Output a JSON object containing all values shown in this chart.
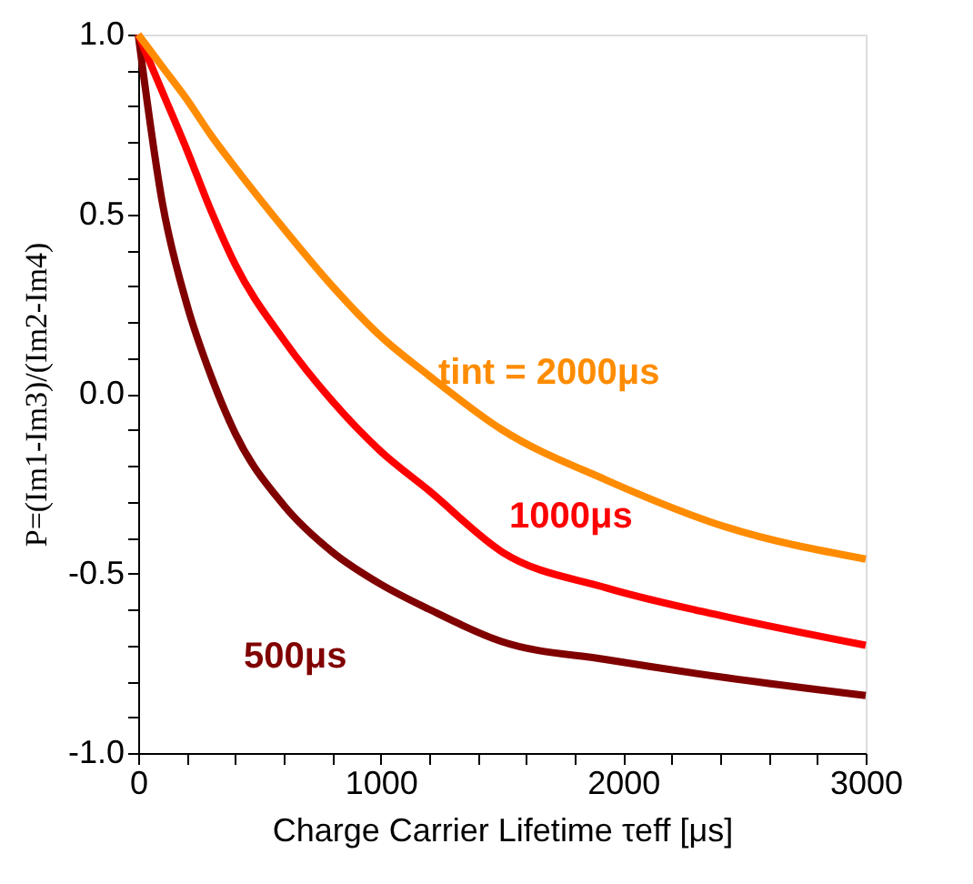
{
  "chart_data": {
    "type": "line",
    "xlabel": "Charge Carrier Lifetime τeff [μs]",
    "ylabel": "P=(Im1-Im3)/(Im2-Im4)",
    "x": [
      0,
      100,
      200,
      300,
      400,
      600,
      800,
      1000,
      1200,
      1500,
      1930,
      2420,
      3000
    ],
    "series": [
      {
        "color": "#800000",
        "values": [
          1.0,
          0.53,
          0.25,
          0.05,
          -0.11,
          -0.31,
          -0.44,
          -0.53,
          -0.6,
          -0.69,
          -0.74,
          -0.79,
          -0.84
        ]
      },
      {
        "color": "#ff0000",
        "values": [
          1.0,
          0.84,
          0.68,
          0.51,
          0.36,
          0.15,
          -0.02,
          -0.16,
          -0.27,
          -0.44,
          -0.54,
          -0.62,
          -0.7
        ]
      },
      {
        "color": "#ff8c00",
        "values": [
          1.0,
          0.91,
          0.82,
          0.72,
          0.63,
          0.46,
          0.3,
          0.16,
          0.05,
          -0.1,
          -0.24,
          -0.37,
          -0.46
        ]
      }
    ],
    "annotations": [
      "500μs",
      "1000μs",
      "tint = 2000μs"
    ],
    "xlim": [
      0,
      3000
    ],
    "xticks": [
      0,
      {
        "value": 200,
        "label": null
      },
      {
        "value": 400,
        "label": null
      },
      {
        "value": 600,
        "label": null
      },
      {
        "value": 800,
        "label": null
      },
      1000,
      {
        "value": 1200,
        "label": null
      },
      {
        "value": 1400,
        "label": null
      },
      {
        "value": 1600,
        "label": null
      },
      {
        "value": 1800,
        "label": null
      },
      2000,
      {
        "value": 2200,
        "label": null
      },
      {
        "value": 2400,
        "label": null
      },
      {
        "value": 2600,
        "label": null
      },
      {
        "value": 2800,
        "label": null
      },
      3000
    ],
    "ylim": [
      -1,
      1
    ],
    "yticks": [
      {
        "value": -1,
        "label": "-1.0"
      },
      {
        "value": -0.9,
        "label": null
      },
      {
        "value": -0.8,
        "label": null
      },
      {
        "value": -0.7,
        "label": null
      },
      {
        "value": -0.6,
        "label": null
      },
      {
        "value": -0.5,
        "label": "-0.5"
      },
      {
        "value": -0.4,
        "label": null
      },
      {
        "value": -0.3,
        "label": null
      },
      {
        "value": -0.2,
        "label": null
      },
      {
        "value": -0.1,
        "label": null
      },
      {
        "value": 0,
        "label": "0.0"
      },
      {
        "value": 0.1,
        "label": null
      },
      {
        "value": 0.2,
        "label": null
      },
      {
        "value": 0.3,
        "label": null
      },
      {
        "value": 0.4,
        "label": null
      },
      {
        "value": 0.5,
        "label": "0.5"
      },
      {
        "value": 0.6,
        "label": null
      },
      {
        "value": 0.7,
        "label": null
      },
      {
        "value": 0.8,
        "label": null
      },
      {
        "value": 0.9,
        "label": null
      },
      {
        "value": 1,
        "label": "1.0"
      }
    ],
    "grid": false,
    "legend": false,
    "marker": "none",
    "line_style": "solid"
  }
}
